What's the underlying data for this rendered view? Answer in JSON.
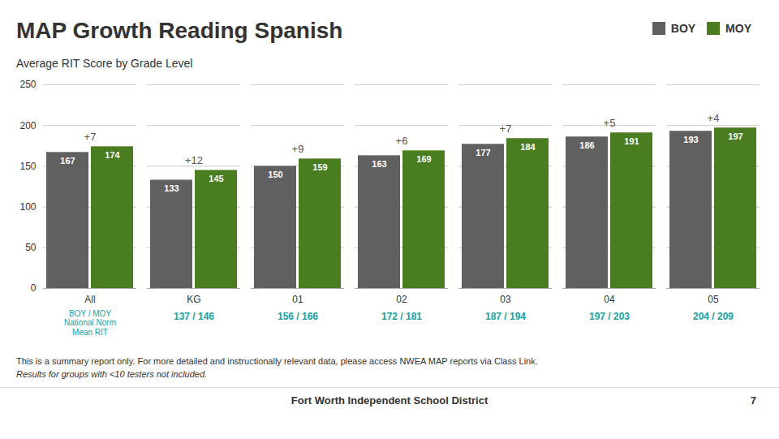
{
  "chart_data": {
    "type": "bar",
    "title": "MAP Growth Reading Spanish",
    "subtitle": "Average RIT Score by Grade Level",
    "categories": [
      "All",
      "KG",
      "01",
      "02",
      "03",
      "04",
      "05"
    ],
    "series": [
      {
        "name": "BOY",
        "color": "#606060",
        "values": [
          167,
          133,
          150,
          163,
          177,
          186,
          193
        ]
      },
      {
        "name": "MOY",
        "color": "#4a7c20",
        "values": [
          174,
          145,
          159,
          169,
          184,
          191,
          197
        ]
      }
    ],
    "ylim": [
      0,
      250
    ],
    "yticks": [
      0,
      50,
      100,
      150,
      200,
      250
    ],
    "grid": true,
    "legend": "upper right",
    "data_labels": true,
    "annotations": [
      "+7",
      "+12",
      "+9",
      "+6",
      "+7",
      "+5",
      "+4"
    ],
    "national_norm": {
      "heading": [
        "BOY / MOY",
        "National Norm",
        "Mean RIT"
      ],
      "labels": [
        "137 / 146",
        "156 / 166",
        "172 / 181",
        "187 / 194",
        "197 / 203",
        "204 / 209"
      ]
    },
    "notes": [
      "This is a summary report only. For more detailed and instructionally relevant data, please access NWEA MAP reports via Class Link.",
      "Results for groups with <10 testers not included."
    ],
    "footer": [
      "Fort Worth Independent School District",
      "7"
    ]
  }
}
